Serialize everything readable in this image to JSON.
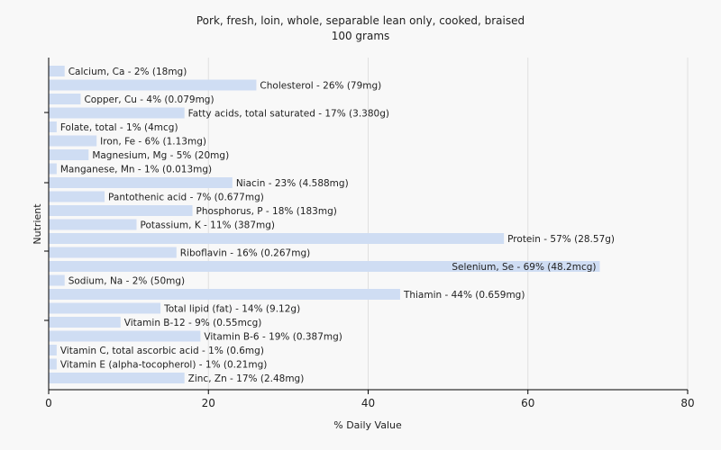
{
  "chart_data": {
    "type": "bar",
    "orientation": "horizontal",
    "title": "Pork, fresh, loin, whole, separable lean only, cooked, braised",
    "subtitle": "100 grams",
    "xlabel": "% Daily Value",
    "ylabel": "Nutrient",
    "xlim": [
      0,
      80
    ],
    "xticks": [
      0,
      20,
      40,
      60,
      80
    ],
    "grid": true,
    "bar_color": "#cfddf3",
    "categories": [
      "Calcium, Ca",
      "Cholesterol",
      "Copper, Cu",
      "Fatty acids, total saturated",
      "Folate, total",
      "Iron, Fe",
      "Magnesium, Mg",
      "Manganese, Mn",
      "Niacin",
      "Pantothenic acid",
      "Phosphorus, P",
      "Potassium, K",
      "Protein",
      "Riboflavin",
      "Selenium, Se",
      "Sodium, Na",
      "Thiamin",
      "Total lipid (fat)",
      "Vitamin B-12",
      "Vitamin B-6",
      "Vitamin C, total ascorbic acid",
      "Vitamin E (alpha-tocopherol)",
      "Zinc, Zn"
    ],
    "values": [
      2,
      26,
      4,
      17,
      1,
      6,
      5,
      1,
      23,
      7,
      18,
      11,
      57,
      16,
      69,
      2,
      44,
      14,
      9,
      19,
      1,
      1,
      17
    ],
    "labels": [
      "Calcium, Ca - 2% (18mg)",
      "Cholesterol - 26% (79mg)",
      "Copper, Cu - 4% (0.079mg)",
      "Fatty acids, total saturated - 17% (3.380g)",
      "Folate, total - 1% (4mcg)",
      "Iron, Fe - 6% (1.13mg)",
      "Magnesium, Mg - 5% (20mg)",
      "Manganese, Mn - 1% (0.013mg)",
      "Niacin - 23% (4.588mg)",
      "Pantothenic acid - 7% (0.677mg)",
      "Phosphorus, P - 18% (183mg)",
      "Potassium, K - 11% (387mg)",
      "Protein - 57% (28.57g)",
      "Riboflavin - 16% (0.267mg)",
      "Selenium, Se - 69% (48.2mcg)",
      "Sodium, Na - 2% (50mg)",
      "Thiamin - 44% (0.659mg)",
      "Total lipid (fat) - 14% (9.12g)",
      "Vitamin B-12 - 9% (0.55mcg)",
      "Vitamin B-6 - 19% (0.387mg)",
      "Vitamin C, total ascorbic acid - 1% (0.6mg)",
      "Vitamin E (alpha-tocopherol) - 1% (0.21mg)",
      "Zinc, Zn - 17% (2.48mg)"
    ]
  }
}
